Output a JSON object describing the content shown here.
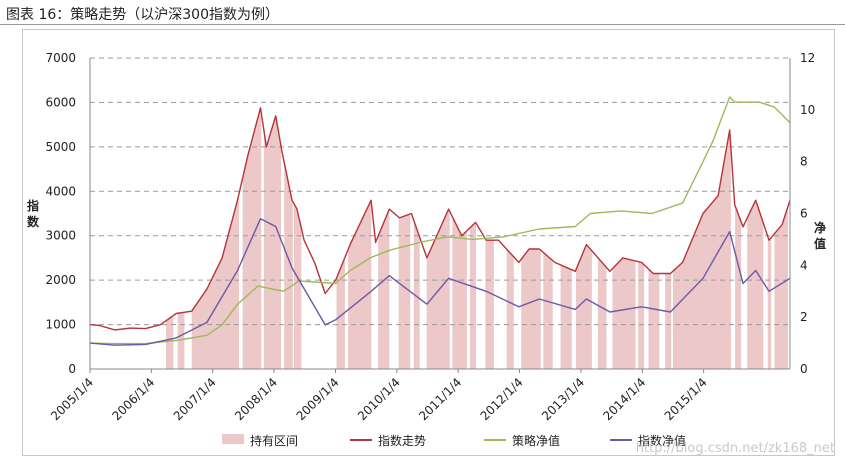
{
  "figure": {
    "title": "图表 16：策略走势（以沪深300指数为例）",
    "watermark": "http://blog.csdn.net/zk168_net"
  },
  "chart_data": {
    "type": "line",
    "ylabel": "指数",
    "ylabel_right": "净值",
    "ylim": [
      0,
      7000
    ],
    "ylim_right": [
      0,
      12
    ],
    "yticks": [
      0,
      1000,
      2000,
      3000,
      4000,
      5000,
      6000,
      7000
    ],
    "yticks_right": [
      0,
      2,
      4,
      6,
      8,
      10,
      12
    ],
    "xlim": [
      "2005-01-04",
      "2016-06-01"
    ],
    "xtick_labels": [
      "2005/1/4",
      "2006/1/4",
      "2007/1/4",
      "2008/1/4",
      "2009/1/4",
      "2010/1/4",
      "2011/1/4",
      "2012/1/4",
      "2013/1/4",
      "2014/1/4",
      "2015/1/4"
    ],
    "xtick_dates": [
      "2005-01-04",
      "2006-01-04",
      "2007-01-04",
      "2008-01-04",
      "2009-01-04",
      "2010-01-04",
      "2011-01-04",
      "2012-01-04",
      "2013-01-04",
      "2014-01-04",
      "2015-01-04"
    ],
    "grid": "horizontal dashed",
    "legend_position": "bottom",
    "legend": [
      "持有区间",
      "指数走势",
      "策略净值",
      "指数净值"
    ],
    "colors": {
      "holding": "#ecc8c8",
      "index": "#b5343a",
      "strategy": "#9bbb59",
      "index_nav": "#6a5aa8",
      "grid": "#9a9a9a"
    },
    "holding_periods": [
      [
        "2006-04-01",
        "2006-05-15"
      ],
      [
        "2006-06-10",
        "2006-07-20"
      ],
      [
        "2006-09-01",
        "2007-06-10"
      ],
      [
        "2007-07-01",
        "2007-10-20"
      ],
      [
        "2007-11-05",
        "2008-02-15"
      ],
      [
        "2008-03-05",
        "2008-04-25"
      ],
      [
        "2008-05-01",
        "2008-06-15"
      ],
      [
        "2009-01-10",
        "2009-03-01"
      ],
      [
        "2009-03-20",
        "2009-08-05"
      ],
      [
        "2009-09-15",
        "2009-11-20"
      ],
      [
        "2010-01-15",
        "2010-03-25"
      ],
      [
        "2010-04-15",
        "2010-05-20"
      ],
      [
        "2010-07-01",
        "2010-11-15"
      ],
      [
        "2010-12-01",
        "2011-02-25"
      ],
      [
        "2011-03-15",
        "2011-04-20"
      ],
      [
        "2011-06-15",
        "2011-08-05"
      ],
      [
        "2011-10-20",
        "2011-12-01"
      ],
      [
        "2012-01-15",
        "2012-05-10"
      ],
      [
        "2012-05-25",
        "2012-07-20"
      ],
      [
        "2012-09-05",
        "2012-11-10"
      ],
      [
        "2012-12-05",
        "2013-03-10"
      ],
      [
        "2013-04-15",
        "2013-06-05"
      ],
      [
        "2013-07-10",
        "2013-11-25"
      ],
      [
        "2013-12-10",
        "2014-01-15"
      ],
      [
        "2014-02-10",
        "2014-04-15"
      ],
      [
        "2014-05-20",
        "2014-06-25"
      ],
      [
        "2014-07-05",
        "2015-06-15"
      ],
      [
        "2015-07-10",
        "2015-08-15"
      ],
      [
        "2015-09-20",
        "2015-12-25"
      ],
      [
        "2016-01-20",
        "2016-02-10"
      ],
      [
        "2016-03-01",
        "2016-05-20"
      ]
    ],
    "series": [
      {
        "name": "指数走势",
        "axis": "left",
        "points": [
          [
            "2005-01-04",
            1000
          ],
          [
            "2005-03-01",
            980
          ],
          [
            "2005-06-01",
            880
          ],
          [
            "2005-09-01",
            920
          ],
          [
            "2005-12-01",
            910
          ],
          [
            "2006-03-01",
            1000
          ],
          [
            "2006-06-01",
            1250
          ],
          [
            "2006-09-01",
            1300
          ],
          [
            "2006-12-01",
            1800
          ],
          [
            "2007-03-01",
            2500
          ],
          [
            "2007-06-01",
            3800
          ],
          [
            "2007-08-01",
            4800
          ],
          [
            "2007-10-16",
            5880
          ],
          [
            "2007-11-20",
            5000
          ],
          [
            "2008-01-14",
            5700
          ],
          [
            "2008-02-20",
            4900
          ],
          [
            "2008-04-20",
            3800
          ],
          [
            "2008-05-20",
            3600
          ],
          [
            "2008-07-01",
            2900
          ],
          [
            "2008-09-01",
            2400
          ],
          [
            "2008-11-04",
            1700
          ],
          [
            "2009-01-05",
            2000
          ],
          [
            "2009-04-01",
            2800
          ],
          [
            "2009-08-04",
            3800
          ],
          [
            "2009-08-31",
            2850
          ],
          [
            "2009-11-20",
            3600
          ],
          [
            "2010-01-20",
            3400
          ],
          [
            "2010-04-01",
            3500
          ],
          [
            "2010-07-02",
            2500
          ],
          [
            "2010-11-08",
            3600
          ],
          [
            "2011-01-25",
            3000
          ],
          [
            "2011-04-18",
            3300
          ],
          [
            "2011-06-20",
            2900
          ],
          [
            "2011-09-01",
            2900
          ],
          [
            "2011-12-31",
            2400
          ],
          [
            "2012-03-01",
            2700
          ],
          [
            "2012-05-01",
            2700
          ],
          [
            "2012-08-01",
            2400
          ],
          [
            "2012-12-01",
            2200
          ],
          [
            "2013-02-05",
            2800
          ],
          [
            "2013-06-25",
            2200
          ],
          [
            "2013-09-10",
            2500
          ],
          [
            "2013-12-31",
            2400
          ],
          [
            "2014-03-10",
            2150
          ],
          [
            "2014-06-20",
            2150
          ],
          [
            "2014-09-01",
            2400
          ],
          [
            "2014-12-31",
            3500
          ],
          [
            "2015-03-31",
            3900
          ],
          [
            "2015-06-08",
            5380
          ],
          [
            "2015-07-08",
            3700
          ],
          [
            "2015-08-26",
            3200
          ],
          [
            "2015-11-10",
            3800
          ],
          [
            "2016-01-28",
            2900
          ],
          [
            "2016-04-15",
            3250
          ],
          [
            "2016-06-01",
            3800
          ]
        ]
      },
      {
        "name": "策略净值",
        "axis": "right",
        "points": [
          [
            "2005-01-04",
            1.0
          ],
          [
            "2005-06-01",
            0.98
          ],
          [
            "2005-12-01",
            0.98
          ],
          [
            "2006-06-01",
            1.1
          ],
          [
            "2006-12-01",
            1.3
          ],
          [
            "2007-03-01",
            1.7
          ],
          [
            "2007-06-01",
            2.5
          ],
          [
            "2007-10-01",
            3.2
          ],
          [
            "2008-03-01",
            3.0
          ],
          [
            "2008-06-01",
            3.4
          ],
          [
            "2009-01-05",
            3.3
          ],
          [
            "2009-04-01",
            3.8
          ],
          [
            "2009-08-01",
            4.3
          ],
          [
            "2009-12-01",
            4.6
          ],
          [
            "2010-06-01",
            4.9
          ],
          [
            "2010-11-01",
            5.1
          ],
          [
            "2011-04-01",
            5.0
          ],
          [
            "2011-10-01",
            5.1
          ],
          [
            "2012-05-01",
            5.4
          ],
          [
            "2012-12-01",
            5.5
          ],
          [
            "2013-03-01",
            6.0
          ],
          [
            "2013-09-01",
            6.1
          ],
          [
            "2014-03-01",
            6.0
          ],
          [
            "2014-09-01",
            6.4
          ],
          [
            "2014-12-31",
            8.0
          ],
          [
            "2015-03-01",
            8.8
          ],
          [
            "2015-06-08",
            10.5
          ],
          [
            "2015-07-08",
            10.3
          ],
          [
            "2015-12-01",
            10.3
          ],
          [
            "2016-03-01",
            10.1
          ],
          [
            "2016-06-01",
            9.5
          ]
        ]
      },
      {
        "name": "指数净值",
        "axis": "right",
        "points": [
          [
            "2005-01-04",
            1.0
          ],
          [
            "2005-06-01",
            0.92
          ],
          [
            "2005-12-01",
            0.95
          ],
          [
            "2006-06-01",
            1.2
          ],
          [
            "2006-12-01",
            1.8
          ],
          [
            "2007-06-01",
            3.8
          ],
          [
            "2007-10-16",
            5.8
          ],
          [
            "2008-01-14",
            5.5
          ],
          [
            "2008-04-20",
            3.9
          ],
          [
            "2008-11-04",
            1.7
          ],
          [
            "2009-01-05",
            1.9
          ],
          [
            "2009-08-04",
            3.0
          ],
          [
            "2009-11-20",
            3.6
          ],
          [
            "2010-07-02",
            2.5
          ],
          [
            "2010-11-08",
            3.5
          ],
          [
            "2011-06-20",
            3.0
          ],
          [
            "2011-12-31",
            2.4
          ],
          [
            "2012-05-01",
            2.7
          ],
          [
            "2012-12-01",
            2.3
          ],
          [
            "2013-02-05",
            2.7
          ],
          [
            "2013-06-25",
            2.2
          ],
          [
            "2013-12-31",
            2.4
          ],
          [
            "2014-06-20",
            2.2
          ],
          [
            "2014-12-31",
            3.5
          ],
          [
            "2015-06-08",
            5.3
          ],
          [
            "2015-08-26",
            3.3
          ],
          [
            "2015-11-10",
            3.8
          ],
          [
            "2016-01-28",
            3.0
          ],
          [
            "2016-06-01",
            3.5
          ]
        ]
      }
    ]
  }
}
